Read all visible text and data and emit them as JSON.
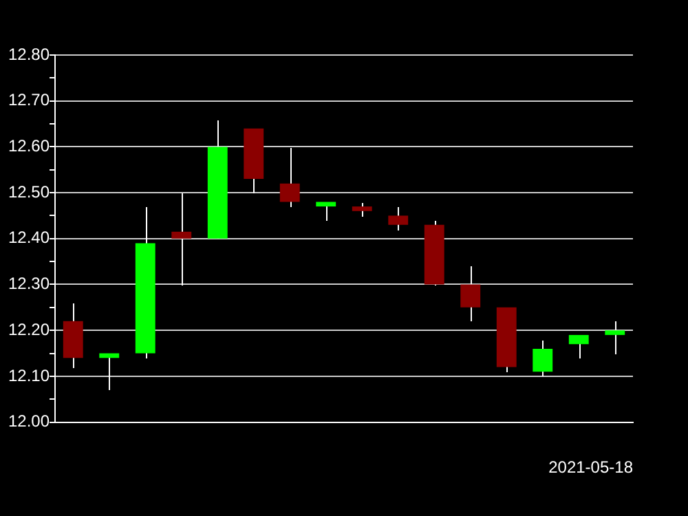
{
  "chart_data": {
    "type": "candlestick",
    "xlabel": "2021-05-18",
    "categories": [
      null,
      null,
      null,
      null,
      null,
      null,
      null,
      null,
      null,
      null,
      null,
      null,
      null,
      null,
      null,
      null
    ],
    "ohlc": [
      [
        12.22,
        12.26,
        12.12,
        12.14
      ],
      [
        12.14,
        12.15,
        12.07,
        12.15
      ],
      [
        12.15,
        12.47,
        12.14,
        12.39
      ],
      [
        12.415,
        12.5,
        12.3,
        12.4
      ],
      [
        12.4,
        12.66,
        12.4,
        12.6
      ],
      [
        12.64,
        12.64,
        12.5,
        12.53
      ],
      [
        12.52,
        12.6,
        12.47,
        12.48
      ],
      [
        12.47,
        12.48,
        12.44,
        12.48
      ],
      [
        12.47,
        12.48,
        12.45,
        12.46
      ],
      [
        12.45,
        12.47,
        12.42,
        12.43
      ],
      [
        12.43,
        12.44,
        12.3,
        12.3
      ],
      [
        12.3,
        12.34,
        12.22,
        12.25
      ],
      [
        12.25,
        12.25,
        12.11,
        12.12
      ],
      [
        12.11,
        12.18,
        12.1,
        12.16
      ],
      [
        12.17,
        12.19,
        12.14,
        12.19
      ],
      [
        12.19,
        12.22,
        12.15,
        12.2
      ]
    ],
    "colors": [
      "#8b0000",
      "#00ff00",
      "#00ff00",
      "#8b0000",
      "#00ff00",
      "#8b0000",
      "#8b0000",
      "#00ff00",
      "#8b0000",
      "#8b0000",
      "#8b0000",
      "#8b0000",
      "#8b0000",
      "#00ff00",
      "#00ff00",
      "#00ff00"
    ],
    "ylim": [
      12.0,
      12.8
    ],
    "yticks": [
      {
        "value": 12.0,
        "label": "12.00"
      },
      {
        "value": 12.05,
        "label": null
      },
      {
        "value": 12.1,
        "label": "12.10"
      },
      {
        "value": 12.15,
        "label": null
      },
      {
        "value": 12.2,
        "label": "12.20"
      },
      {
        "value": 12.25,
        "label": null
      },
      {
        "value": 12.3,
        "label": "12.30"
      },
      {
        "value": 12.35,
        "label": null
      },
      {
        "value": 12.4,
        "label": "12.40"
      },
      {
        "value": 12.45,
        "label": null
      },
      {
        "value": 12.5,
        "label": "12.50"
      },
      {
        "value": 12.55,
        "label": null
      },
      {
        "value": 12.6,
        "label": "12.60"
      },
      {
        "value": 12.65,
        "label": null
      },
      {
        "value": 12.7,
        "label": "12.70"
      },
      {
        "value": 12.75,
        "label": null
      },
      {
        "value": 12.8,
        "label": "12.80"
      }
    ],
    "grid": "y"
  }
}
